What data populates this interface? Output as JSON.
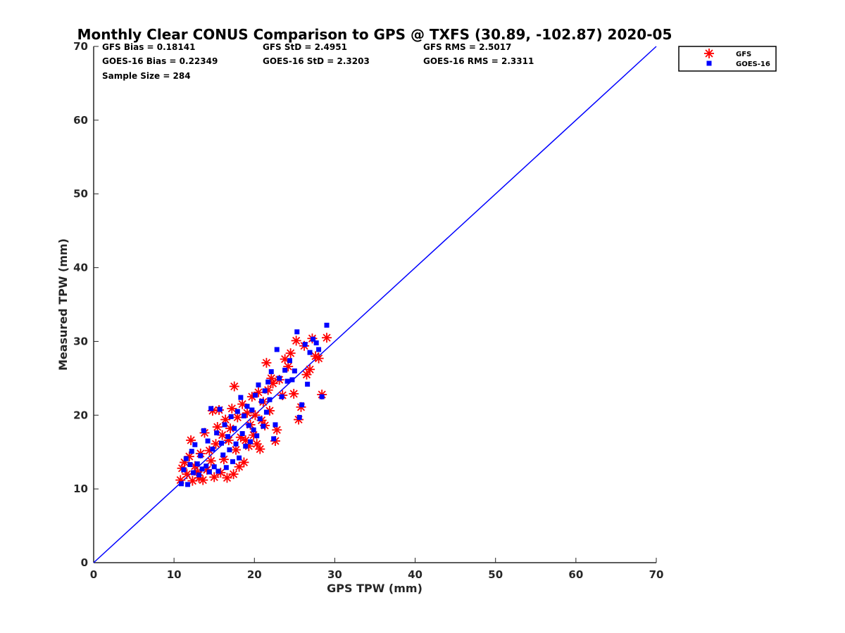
{
  "chart_data": {
    "type": "scatter",
    "title": "Monthly Clear CONUS Comparison to GPS @ TXFS (30.89, -102.87) 2020-05",
    "xlabel": "GPS TPW (mm)",
    "ylabel": "Measured TPW (mm)",
    "xlim": [
      0,
      70
    ],
    "ylim": [
      0,
      70
    ],
    "xticks": [
      "0",
      "10",
      "20",
      "30",
      "40",
      "50",
      "60",
      "70"
    ],
    "yticks": [
      "0",
      "10",
      "20",
      "30",
      "40",
      "50",
      "60",
      "70"
    ],
    "grid": false,
    "legend_position": "outside-top-right",
    "stats": [
      [
        "GFS Bias = 0.18141",
        "GFS StD = 2.4951",
        "GFS RMS = 2.5017"
      ],
      [
        "GOES-16 Bias = 0.22349",
        "GOES-16 StD = 2.3203",
        "GOES-16 RMS = 2.3311"
      ],
      [
        "Sample Size = 284"
      ]
    ],
    "reference_line": {
      "x": [
        0,
        70
      ],
      "y": [
        0,
        70
      ],
      "color": "#0000ff"
    },
    "series": [
      {
        "name": "GFS",
        "marker": "asterisk",
        "color": "#ff0000",
        "points": [
          [
            10.8,
            11.2
          ],
          [
            11.0,
            12.8
          ],
          [
            11.3,
            13.6
          ],
          [
            11.6,
            12.0
          ],
          [
            11.9,
            14.4
          ],
          [
            12.1,
            16.6
          ],
          [
            12.3,
            11.1
          ],
          [
            12.6,
            13.1
          ],
          [
            12.9,
            12.3
          ],
          [
            13.1,
            11.5
          ],
          [
            13.3,
            14.8
          ],
          [
            13.6,
            11.2
          ],
          [
            13.8,
            17.6
          ],
          [
            14.1,
            12.6
          ],
          [
            14.4,
            15.2
          ],
          [
            14.6,
            13.8
          ],
          [
            14.8,
            20.6
          ],
          [
            15.0,
            11.6
          ],
          [
            15.2,
            16.1
          ],
          [
            15.4,
            18.4
          ],
          [
            15.6,
            20.7
          ],
          [
            15.8,
            12.2
          ],
          [
            16.0,
            17.3
          ],
          [
            16.2,
            14.0
          ],
          [
            16.4,
            19.4
          ],
          [
            16.6,
            11.5
          ],
          [
            16.8,
            16.6
          ],
          [
            17.0,
            18.2
          ],
          [
            17.2,
            20.9
          ],
          [
            17.4,
            12.0
          ],
          [
            17.5,
            23.9
          ],
          [
            17.7,
            15.3
          ],
          [
            17.9,
            19.7
          ],
          [
            18.1,
            13.0
          ],
          [
            18.3,
            17.0
          ],
          [
            18.5,
            21.5
          ],
          [
            18.7,
            13.6
          ],
          [
            18.9,
            16.6
          ],
          [
            19.1,
            20.3
          ],
          [
            19.3,
            15.8
          ],
          [
            19.5,
            18.7
          ],
          [
            19.7,
            22.5
          ],
          [
            19.9,
            17.3
          ],
          [
            20.1,
            20.0
          ],
          [
            20.3,
            16.1
          ],
          [
            20.5,
            23.1
          ],
          [
            20.7,
            15.4
          ],
          [
            20.9,
            19.3
          ],
          [
            21.1,
            21.8
          ],
          [
            21.3,
            18.6
          ],
          [
            21.5,
            27.1
          ],
          [
            21.7,
            23.4
          ],
          [
            21.9,
            20.6
          ],
          [
            22.1,
            25.0
          ],
          [
            22.3,
            24.3
          ],
          [
            22.6,
            16.5
          ],
          [
            22.8,
            18.0
          ],
          [
            23.1,
            24.8
          ],
          [
            23.5,
            22.7
          ],
          [
            23.8,
            27.6
          ],
          [
            24.2,
            26.6
          ],
          [
            24.5,
            28.4
          ],
          [
            24.9,
            22.9
          ],
          [
            25.2,
            30.1
          ],
          [
            25.5,
            19.4
          ],
          [
            25.8,
            21.1
          ],
          [
            26.2,
            29.4
          ],
          [
            26.5,
            25.5
          ],
          [
            26.9,
            26.2
          ],
          [
            27.2,
            30.4
          ],
          [
            27.6,
            28.0
          ],
          [
            28.0,
            27.7
          ],
          [
            28.4,
            22.8
          ],
          [
            29.0,
            30.5
          ]
        ]
      },
      {
        "name": "GOES-16",
        "marker": "square",
        "color": "#0000ff",
        "points": [
          [
            10.9,
            10.7
          ],
          [
            11.2,
            12.6
          ],
          [
            11.5,
            14.1
          ],
          [
            11.7,
            10.6
          ],
          [
            12.0,
            13.3
          ],
          [
            12.2,
            15.1
          ],
          [
            12.4,
            12.2
          ],
          [
            12.6,
            16.0
          ],
          [
            12.9,
            13.4
          ],
          [
            13.1,
            11.9
          ],
          [
            13.3,
            14.5
          ],
          [
            13.5,
            12.7
          ],
          [
            13.7,
            17.9
          ],
          [
            14.0,
            13.1
          ],
          [
            14.2,
            16.5
          ],
          [
            14.4,
            12.3
          ],
          [
            14.6,
            20.9
          ],
          [
            14.8,
            15.4
          ],
          [
            15.0,
            13.0
          ],
          [
            15.3,
            17.6
          ],
          [
            15.5,
            12.4
          ],
          [
            15.7,
            20.8
          ],
          [
            15.9,
            16.2
          ],
          [
            16.1,
            14.6
          ],
          [
            16.3,
            18.7
          ],
          [
            16.5,
            12.9
          ],
          [
            16.7,
            17.1
          ],
          [
            16.9,
            15.3
          ],
          [
            17.1,
            19.8
          ],
          [
            17.3,
            13.7
          ],
          [
            17.5,
            18.2
          ],
          [
            17.7,
            16.1
          ],
          [
            17.9,
            20.5
          ],
          [
            18.1,
            14.2
          ],
          [
            18.3,
            22.4
          ],
          [
            18.5,
            17.5
          ],
          [
            18.7,
            19.9
          ],
          [
            18.9,
            15.8
          ],
          [
            19.1,
            21.2
          ],
          [
            19.3,
            18.6
          ],
          [
            19.5,
            16.4
          ],
          [
            19.7,
            20.7
          ],
          [
            19.9,
            18.0
          ],
          [
            20.1,
            22.7
          ],
          [
            20.3,
            17.2
          ],
          [
            20.5,
            24.1
          ],
          [
            20.7,
            19.5
          ],
          [
            20.9,
            21.9
          ],
          [
            21.1,
            18.5
          ],
          [
            21.3,
            23.3
          ],
          [
            21.5,
            20.4
          ],
          [
            21.7,
            24.5
          ],
          [
            21.9,
            22.1
          ],
          [
            22.1,
            25.9
          ],
          [
            22.4,
            16.8
          ],
          [
            22.6,
            18.7
          ],
          [
            22.8,
            28.9
          ],
          [
            23.1,
            25.0
          ],
          [
            23.4,
            22.5
          ],
          [
            23.8,
            26.1
          ],
          [
            24.1,
            24.6
          ],
          [
            24.4,
            27.4
          ],
          [
            24.7,
            24.8
          ],
          [
            25.0,
            26.0
          ],
          [
            25.3,
            31.3
          ],
          [
            25.6,
            19.7
          ],
          [
            25.9,
            21.4
          ],
          [
            26.3,
            29.6
          ],
          [
            26.6,
            24.2
          ],
          [
            26.9,
            28.5
          ],
          [
            27.3,
            30.3
          ],
          [
            27.7,
            29.8
          ],
          [
            28.0,
            28.9
          ],
          [
            28.4,
            22.5
          ],
          [
            29.0,
            32.2
          ]
        ]
      }
    ]
  }
}
